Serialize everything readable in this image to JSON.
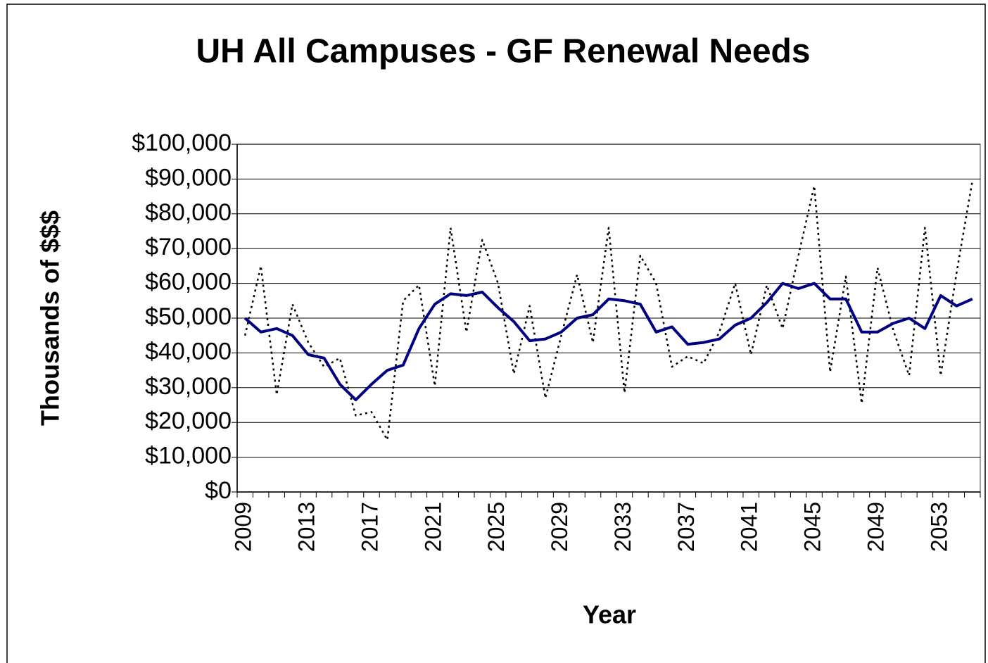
{
  "chart_data": {
    "type": "line",
    "title": "UH All Campuses - GF Renewal Needs",
    "x_label": "Year",
    "y_label": "Thousands of $$$",
    "categories": [
      "2009",
      null,
      null,
      null,
      "2013",
      null,
      null,
      null,
      "2017",
      null,
      null,
      null,
      "2021",
      null,
      null,
      null,
      "2025",
      null,
      null,
      null,
      "2029",
      null,
      null,
      null,
      "2033",
      null,
      null,
      null,
      "2037",
      null,
      null,
      null,
      "2041",
      null,
      null,
      null,
      "2045",
      null,
      null,
      null,
      "2049",
      null,
      null,
      null,
      "2053",
      null,
      null
    ],
    "series": [
      {
        "color": "#000000",
        "style": "dotted",
        "values": [
          45000,
          65000,
          28000,
          54000,
          43000,
          36000,
          38500,
          22000,
          23000,
          15000,
          55000,
          59500,
          30500,
          76000,
          46000,
          72500,
          60000,
          34000,
          53500,
          27000,
          45000,
          62500,
          43000,
          76000,
          28500,
          68000,
          60000,
          36000,
          39000,
          37000,
          46000,
          60000,
          39500,
          59500,
          47000,
          68000,
          88000,
          34500,
          62000,
          25500,
          64500,
          46500,
          33500,
          76000,
          33500,
          63000,
          89500
        ]
      },
      {
        "color": "#000080",
        "style": "solid",
        "values": [
          50000,
          46000,
          47000,
          45000,
          39500,
          38500,
          31000,
          26500,
          31000,
          35000,
          36500,
          47000,
          54000,
          57000,
          56500,
          57500,
          53000,
          49000,
          43500,
          44000,
          46000,
          50000,
          51000,
          55500,
          55000,
          54000,
          46000,
          47500,
          42500,
          43000,
          44000,
          48000,
          50000,
          54500,
          60000,
          58500,
          60000,
          55500,
          55500,
          46000,
          46000,
          48500,
          50000,
          47000,
          56500,
          53500,
          55500
        ]
      }
    ],
    "ylim": [
      0,
      100000
    ],
    "yticks": [
      {
        "value": 0,
        "label": "$0"
      },
      {
        "value": 10000,
        "label": "$10,000"
      },
      {
        "value": 20000,
        "label": "$20,000"
      },
      {
        "value": 30000,
        "label": "$30,000"
      },
      {
        "value": 40000,
        "label": "$40,000"
      },
      {
        "value": 50000,
        "label": "$50,000"
      },
      {
        "value": 60000,
        "label": "$60,000"
      },
      {
        "value": 70000,
        "label": "$70,000"
      },
      {
        "value": 80000,
        "label": "$80,000"
      },
      {
        "value": 90000,
        "label": "$90,000"
      },
      {
        "value": 100000,
        "label": "$100,000"
      }
    ],
    "grid": true
  }
}
